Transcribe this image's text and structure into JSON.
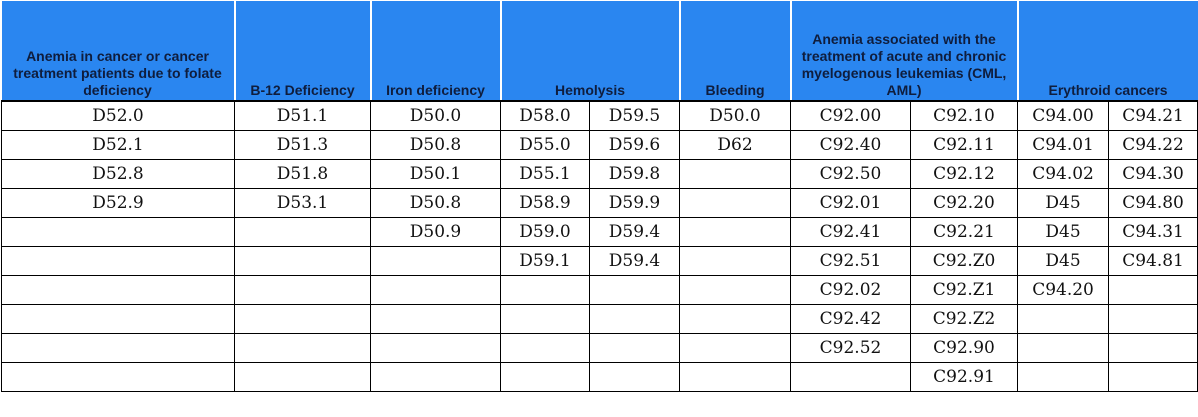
{
  "headers": [
    {
      "label": "Anemia in cancer or cancer treatment patients due to folate deficiency",
      "span": 1
    },
    {
      "label": "B-12 Deficiency",
      "span": 1
    },
    {
      "label": "Iron deficiency",
      "span": 1
    },
    {
      "label": "Hemolysis",
      "span": 2
    },
    {
      "label": "Bleeding",
      "span": 1
    },
    {
      "label": "Anemia associated with the treatment of acute and chronic myelogenous leukemias (CML, AML)",
      "span": 2
    },
    {
      "label": "Erythroid cancers",
      "span": 2
    }
  ],
  "rows": [
    [
      "D52.0",
      "D51.1",
      "D50.0",
      "D58.0",
      "D59.5",
      "D50.0",
      "C92.00",
      "C92.10",
      "C94.00",
      "C94.21"
    ],
    [
      "D52.1",
      "D51.3",
      "D50.8",
      "D55.0",
      "D59.6",
      "D62",
      "C92.40",
      "C92.11",
      "C94.01",
      "C94.22"
    ],
    [
      "D52.8",
      "D51.8",
      "D50.1",
      "D55.1",
      "D59.8",
      "",
      "C92.50",
      "C92.12",
      "C94.02",
      "C94.30"
    ],
    [
      "D52.9",
      "D53.1",
      "D50.8",
      "D58.9",
      "D59.9",
      "",
      "C92.01",
      "C92.20",
      "D45",
      "C94.80"
    ],
    [
      "",
      "",
      "D50.9",
      "D59.0",
      "D59.4",
      "",
      "C92.41",
      "C92.21",
      "D45",
      "C94.31"
    ],
    [
      "",
      "",
      "",
      "D59.1",
      "D59.4",
      "",
      "C92.51",
      "C92.Z0",
      "D45",
      "C94.81"
    ],
    [
      "",
      "",
      "",
      "",
      "",
      "",
      "C92.02",
      "C92.Z1",
      "C94.20",
      ""
    ],
    [
      "",
      "",
      "",
      "",
      "",
      "",
      "C92.42",
      "C92.Z2",
      "",
      ""
    ],
    [
      "",
      "",
      "",
      "",
      "",
      "",
      "C92.52",
      "C92.90",
      "",
      ""
    ],
    [
      "",
      "",
      "",
      "",
      "",
      "",
      "",
      "C92.91",
      "",
      ""
    ]
  ]
}
